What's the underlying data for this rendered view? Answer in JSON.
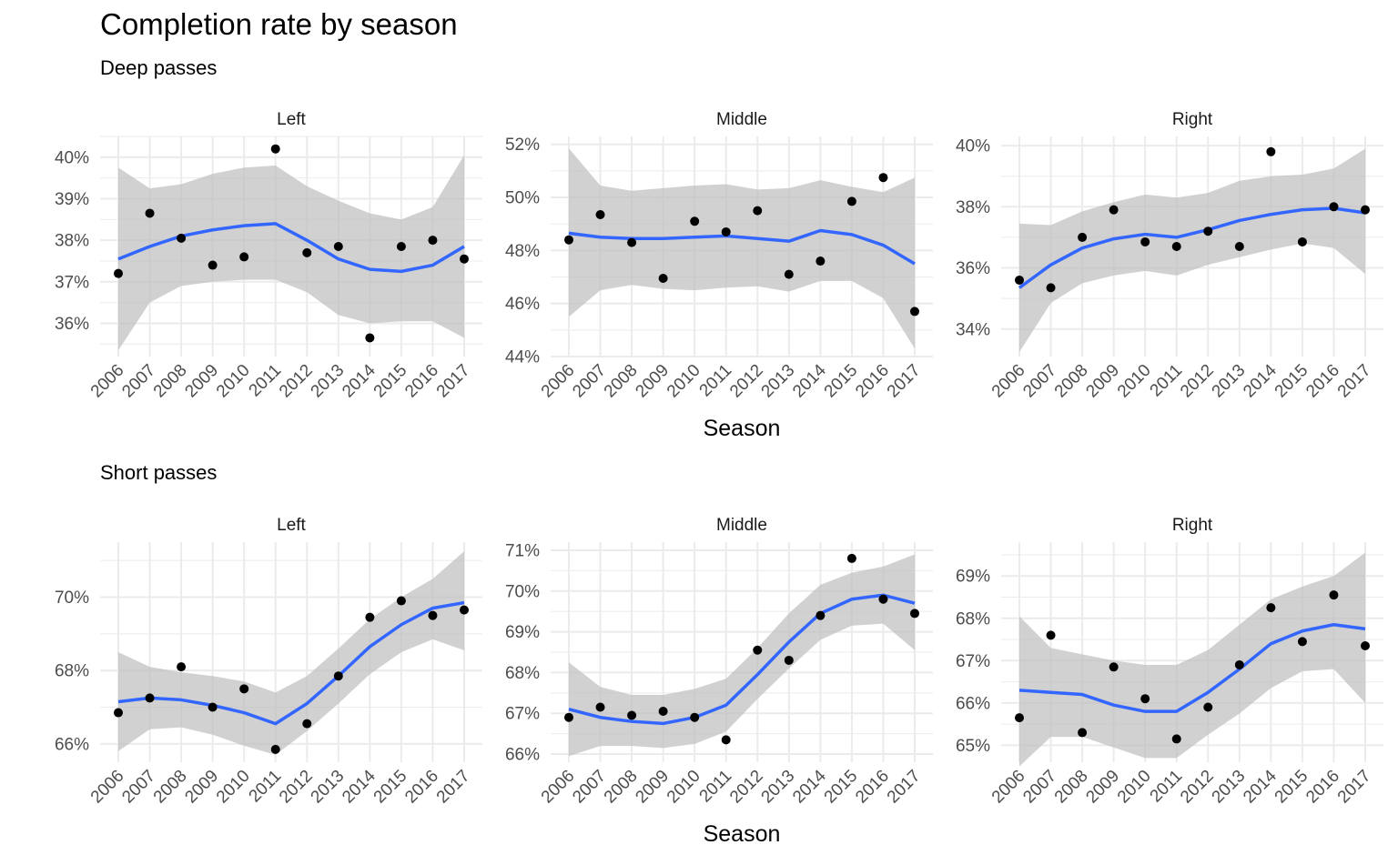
{
  "title": "Completion rate by season",
  "groups": [
    {
      "title": "Deep passes"
    },
    {
      "title": "Short passes"
    }
  ],
  "xlabel": "Season",
  "chart_data": [
    {
      "type": "scatter",
      "group": "Deep passes",
      "panel": "Left",
      "x": [
        "2006",
        "2007",
        "2008",
        "2009",
        "2010",
        "2011",
        "2012",
        "2013",
        "2014",
        "2015",
        "2016",
        "2017"
      ],
      "points": [
        37.2,
        38.65,
        38.05,
        37.4,
        37.6,
        40.2,
        37.7,
        37.85,
        35.65,
        37.85,
        38.0,
        37.55
      ],
      "smooth": [
        37.55,
        37.85,
        38.1,
        38.25,
        38.35,
        38.4,
        38.0,
        37.55,
        37.3,
        37.25,
        37.4,
        37.85
      ],
      "ci_low": [
        35.35,
        36.5,
        36.9,
        37.0,
        37.05,
        37.05,
        36.75,
        36.2,
        36.0,
        36.05,
        36.05,
        35.65
      ],
      "ci_high": [
        39.75,
        39.25,
        39.35,
        39.6,
        39.75,
        39.8,
        39.3,
        38.95,
        38.65,
        38.5,
        38.8,
        40.05
      ],
      "ylim": [
        35.2,
        40.5
      ],
      "yticks": [
        36,
        37,
        38,
        39,
        40
      ],
      "ytick_labels": [
        "36%",
        "37%",
        "38%",
        "39%",
        "40%"
      ],
      "grid": true
    },
    {
      "type": "scatter",
      "group": "Deep passes",
      "panel": "Middle",
      "x": [
        "2006",
        "2007",
        "2008",
        "2009",
        "2010",
        "2011",
        "2012",
        "2013",
        "2014",
        "2015",
        "2016",
        "2017"
      ],
      "points": [
        48.4,
        49.35,
        48.3,
        46.95,
        49.1,
        48.7,
        49.5,
        47.1,
        47.6,
        49.85,
        50.75,
        45.7
      ],
      "smooth": [
        48.65,
        48.5,
        48.45,
        48.45,
        48.5,
        48.55,
        48.45,
        48.35,
        48.75,
        48.6,
        48.2,
        47.5
      ],
      "ci_low": [
        45.5,
        46.5,
        46.7,
        46.55,
        46.5,
        46.6,
        46.65,
        46.45,
        46.85,
        46.85,
        46.2,
        44.3
      ],
      "ci_high": [
        51.85,
        50.45,
        50.25,
        50.35,
        50.45,
        50.5,
        50.3,
        50.35,
        50.65,
        50.4,
        50.2,
        50.75
      ],
      "ylim": [
        44.0,
        52.3
      ],
      "yticks": [
        44,
        46,
        48,
        50,
        52
      ],
      "ytick_labels": [
        "44%",
        "46%",
        "48%",
        "50%",
        "52%"
      ],
      "grid": true
    },
    {
      "type": "scatter",
      "group": "Deep passes",
      "panel": "Right",
      "x": [
        "2006",
        "2007",
        "2008",
        "2009",
        "2010",
        "2011",
        "2012",
        "2013",
        "2014",
        "2015",
        "2016",
        "2017"
      ],
      "points": [
        35.6,
        35.35,
        37.0,
        37.9,
        36.85,
        36.7,
        37.2,
        36.7,
        39.8,
        36.85,
        38.0,
        37.9
      ],
      "smooth": [
        35.35,
        36.1,
        36.65,
        36.95,
        37.1,
        37.0,
        37.25,
        37.55,
        37.75,
        37.9,
        37.95,
        37.8
      ],
      "ci_low": [
        33.25,
        34.85,
        35.5,
        35.75,
        35.9,
        35.75,
        36.1,
        36.35,
        36.6,
        36.8,
        36.65,
        35.8
      ],
      "ci_high": [
        37.45,
        37.4,
        37.85,
        38.15,
        38.4,
        38.3,
        38.45,
        38.85,
        39.0,
        39.05,
        39.25,
        39.9
      ],
      "ylim": [
        33.1,
        40.3
      ],
      "yticks": [
        34,
        36,
        38,
        40
      ],
      "ytick_labels": [
        "34%",
        "36%",
        "38%",
        "40%"
      ],
      "grid": true
    },
    {
      "type": "scatter",
      "group": "Short passes",
      "panel": "Left",
      "x": [
        "2006",
        "2007",
        "2008",
        "2009",
        "2010",
        "2011",
        "2012",
        "2013",
        "2014",
        "2015",
        "2016",
        "2017"
      ],
      "points": [
        66.85,
        67.25,
        68.1,
        67.0,
        67.5,
        65.85,
        66.55,
        67.85,
        69.45,
        69.9,
        69.5,
        69.65
      ],
      "smooth": [
        67.15,
        67.25,
        67.2,
        67.05,
        66.85,
        66.55,
        67.1,
        67.85,
        68.65,
        69.25,
        69.7,
        69.85
      ],
      "ci_low": [
        65.8,
        66.4,
        66.45,
        66.25,
        65.95,
        65.7,
        66.35,
        67.1,
        67.9,
        68.5,
        68.85,
        68.55
      ],
      "ci_high": [
        68.5,
        68.1,
        67.95,
        67.85,
        67.7,
        67.4,
        67.85,
        68.6,
        69.4,
        70.0,
        70.5,
        71.25
      ],
      "ylim": [
        65.5,
        71.5
      ],
      "yticks": [
        66,
        68,
        70
      ],
      "ytick_labels": [
        "66%",
        "68%",
        "70%"
      ],
      "grid": true
    },
    {
      "type": "scatter",
      "group": "Short passes",
      "panel": "Middle",
      "x": [
        "2006",
        "2007",
        "2008",
        "2009",
        "2010",
        "2011",
        "2012",
        "2013",
        "2014",
        "2015",
        "2016",
        "2017"
      ],
      "points": [
        66.9,
        67.15,
        66.95,
        67.05,
        66.9,
        66.35,
        68.55,
        68.3,
        69.4,
        70.8,
        69.8,
        69.45
      ],
      "smooth": [
        67.1,
        66.9,
        66.8,
        66.75,
        66.9,
        67.2,
        67.95,
        68.75,
        69.45,
        69.8,
        69.9,
        69.7
      ],
      "ci_low": [
        65.95,
        66.2,
        66.2,
        66.15,
        66.25,
        66.55,
        67.35,
        68.1,
        68.8,
        69.15,
        69.2,
        68.55
      ],
      "ci_high": [
        68.25,
        67.65,
        67.45,
        67.45,
        67.6,
        67.85,
        68.6,
        69.45,
        70.15,
        70.45,
        70.6,
        70.9
      ],
      "ylim": [
        65.8,
        71.2
      ],
      "yticks": [
        66,
        67,
        68,
        69,
        70,
        71
      ],
      "ytick_labels": [
        "66%",
        "67%",
        "68%",
        "69%",
        "70%",
        "71%"
      ],
      "grid": true
    },
    {
      "type": "scatter",
      "group": "Short passes",
      "panel": "Right",
      "x": [
        "2006",
        "2007",
        "2008",
        "2009",
        "2010",
        "2011",
        "2012",
        "2013",
        "2014",
        "2015",
        "2016",
        "2017"
      ],
      "points": [
        65.65,
        67.6,
        65.3,
        66.85,
        66.1,
        65.15,
        65.9,
        66.9,
        68.25,
        67.45,
        68.55,
        67.35
      ],
      "smooth": [
        66.3,
        66.25,
        66.2,
        65.95,
        65.8,
        65.8,
        66.25,
        66.8,
        67.4,
        67.7,
        67.85,
        67.75
      ],
      "ci_low": [
        64.5,
        65.2,
        65.2,
        64.95,
        64.7,
        64.7,
        65.25,
        65.75,
        66.35,
        66.75,
        66.8,
        66.0
      ],
      "ci_high": [
        68.05,
        67.3,
        67.15,
        67.0,
        66.9,
        66.9,
        67.25,
        67.85,
        68.45,
        68.75,
        69.0,
        69.55
      ],
      "ylim": [
        64.6,
        69.8
      ],
      "yticks": [
        65,
        66,
        67,
        68,
        69
      ],
      "ytick_labels": [
        "65%",
        "66%",
        "67%",
        "68%",
        "69%"
      ],
      "grid": true
    }
  ],
  "colors": {
    "point": "#000000",
    "smooth": "#3366ff",
    "ribbon": "#bdbdbd",
    "grid": "#ebebeb",
    "tick_text": "#4d4d4d"
  }
}
